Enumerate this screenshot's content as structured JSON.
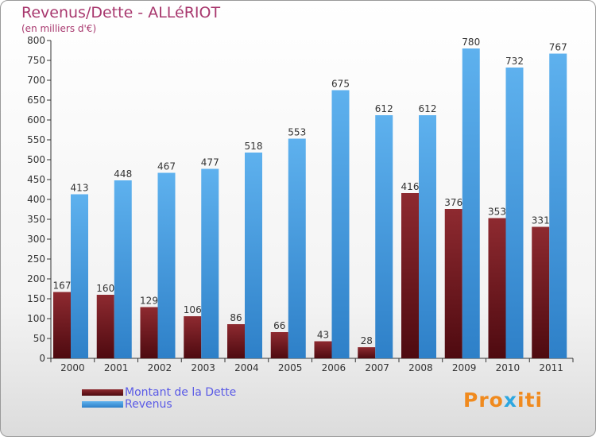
{
  "header": {
    "title": "Revenus/Dette - ALLéRIOT",
    "subtitle": "(en milliers d'€)"
  },
  "legend": {
    "debt_label": "Montant de la Dette",
    "revenue_label": "Revenus"
  },
  "logo": {
    "text": "Proxiti"
  },
  "colors": {
    "debt": "#7a1a20",
    "revenue": "#4a9fe0",
    "title": "#a8386e"
  },
  "chart_data": {
    "type": "bar",
    "title": "Revenus/Dette - ALLéRIOT",
    "ylabel": "(en milliers d'€)",
    "xlabel": "",
    "ylim": [
      0,
      800
    ],
    "yticks": [
      0,
      50,
      100,
      150,
      200,
      250,
      300,
      350,
      400,
      450,
      500,
      550,
      600,
      650,
      700,
      750,
      800
    ],
    "grid": false,
    "legend_position": "bottom-left",
    "categories": [
      "2000",
      "2001",
      "2002",
      "2003",
      "2004",
      "2005",
      "2006",
      "2007",
      "2008",
      "2009",
      "2010",
      "2011"
    ],
    "series": [
      {
        "name": "Montant de la Dette",
        "values": [
          167,
          160,
          129,
          106,
          86,
          66,
          43,
          28,
          416,
          376,
          353,
          331
        ]
      },
      {
        "name": "Revenus",
        "values": [
          413,
          448,
          467,
          477,
          518,
          553,
          675,
          612,
          612,
          780,
          732,
          767
        ]
      }
    ]
  }
}
